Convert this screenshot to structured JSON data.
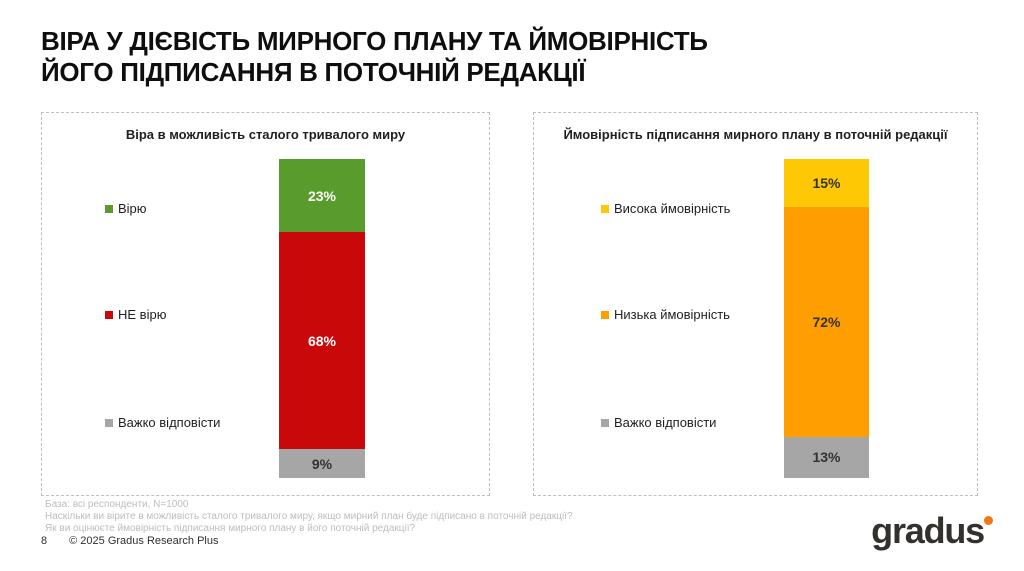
{
  "slide": {
    "title_line1": "ВІРА У ДІЄВІСТЬ МИРНОГО ПЛАНУ ТА ЙМОВІРНІСТЬ",
    "title_line2": "ЙОГО ПІДПИСАННЯ В ПОТОЧНІЙ РЕДАКЦІЇ",
    "page_number": "8",
    "copyright": "© 2025 Gradus Research Plus",
    "logo_text": "gradus",
    "logo_dot_color": "#F07818"
  },
  "footnotes": {
    "base": "База: всі респонденти, N=1000",
    "question1": "Наскільки ви вірите в можливість сталого тривалого миру, якщо мирний план буде підписано в поточній редакції?",
    "question2": "Як ви оцінюєте ймовірність підписання мирного плану в його поточній редакції?"
  },
  "chart_data": [
    {
      "type": "bar",
      "stacked": true,
      "orientation": "vertical",
      "title": "Віра в можливість сталого тривалого миру",
      "categories": [
        "Вірю",
        "НЕ вірю",
        "Важко відповісти"
      ],
      "values": [
        23,
        68,
        9
      ],
      "unit": "%",
      "data_labels": [
        "23%",
        "68%",
        "9%"
      ],
      "colors": [
        "#5A9B2E",
        "#C90909",
        "#A6A6A6"
      ],
      "label_colors": [
        "#FFFFFF",
        "#FFFFFF",
        "#333333"
      ],
      "legend_position": "left",
      "ylim": [
        0,
        100
      ],
      "grid": false
    },
    {
      "type": "bar",
      "stacked": true,
      "orientation": "vertical",
      "title": "Ймовірність підписання мирного плану в поточній редакції",
      "categories": [
        "Висока ймовірність",
        "Низька ймовірність",
        "Важко відповісти"
      ],
      "values": [
        15,
        72,
        13
      ],
      "unit": "%",
      "data_labels": [
        "15%",
        "72%",
        "13%"
      ],
      "colors": [
        "#FFC805",
        "#FF9E00",
        "#A6A6A6"
      ],
      "label_colors": [
        "#333333",
        "#333333",
        "#333333"
      ],
      "legend_position": "left",
      "ylim": [
        0,
        100
      ],
      "grid": false
    }
  ]
}
